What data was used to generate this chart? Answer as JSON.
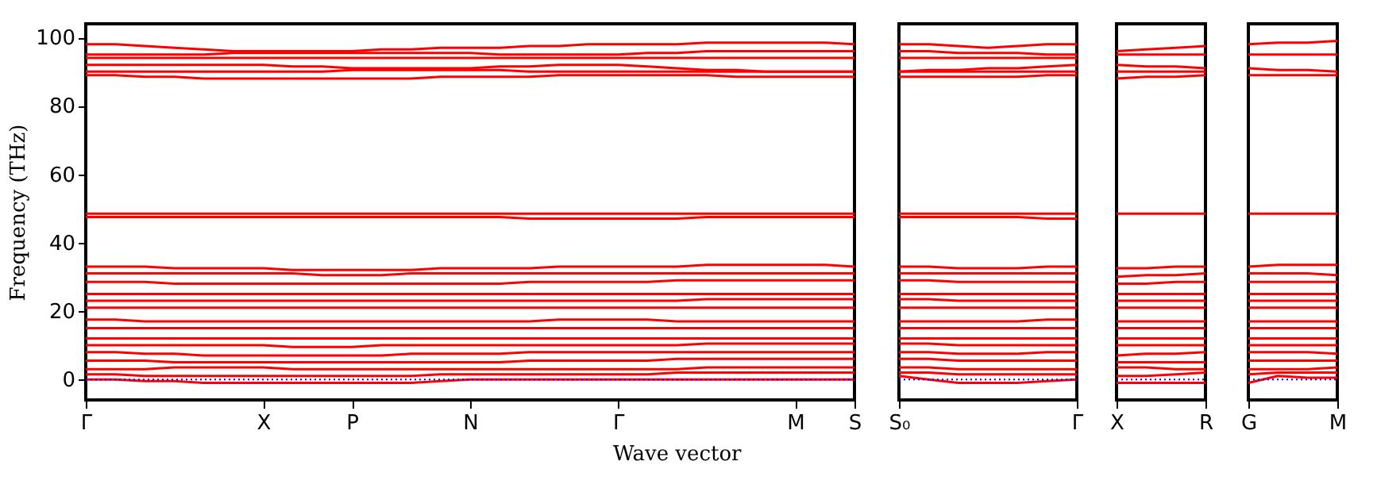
{
  "chart_data": [
    {
      "type": "line",
      "xlabel": "Wave vector",
      "ylabel": "Frequency (THz)",
      "categories": [
        "Γ",
        null,
        null,
        null,
        null,
        null,
        "X",
        null,
        null,
        "P",
        null,
        null,
        null,
        "N",
        null,
        null,
        null,
        null,
        "Γ",
        null,
        null,
        null,
        null,
        null,
        "M",
        null,
        "S"
      ],
      "ylim": [
        -6,
        104
      ],
      "yticks": [
        0,
        20,
        40,
        60,
        80,
        100
      ],
      "grid": false,
      "series": [
        {
          "color": "#ff0000",
          "values": [
            98,
            98,
            97.5,
            97,
            96.5,
            96,
            96,
            96,
            96,
            96,
            96.5,
            96.5,
            97,
            97,
            97,
            97.5,
            97.5,
            98,
            98,
            98,
            98,
            98.5,
            98.5,
            98.5,
            98.5,
            98.5,
            98
          ]
        },
        {
          "color": "#ff0000",
          "values": [
            95,
            95,
            95,
            95,
            95,
            95.5,
            95.5,
            95.5,
            95.5,
            95.5,
            95.5,
            95.5,
            95.5,
            95.5,
            95,
            95,
            95,
            95,
            95,
            95.5,
            95.5,
            96,
            96,
            96,
            96,
            96,
            96
          ]
        },
        {
          "color": "#ff0000",
          "values": [
            94,
            94,
            94,
            94,
            94,
            94,
            94,
            94,
            94,
            94,
            94,
            94,
            94,
            94,
            94,
            94,
            94,
            94,
            94,
            94,
            94,
            94,
            94,
            94,
            94,
            94,
            94
          ]
        },
        {
          "color": "#ff0000",
          "values": [
            92,
            92,
            92,
            92,
            92,
            92,
            92,
            91.5,
            91.5,
            91,
            91,
            91,
            91,
            91,
            91.5,
            91.5,
            92,
            92,
            92,
            91.5,
            91,
            90.5,
            90.5,
            90,
            90,
            90,
            90
          ]
        },
        {
          "color": "#ff0000",
          "values": [
            90,
            90,
            90,
            90,
            90,
            90,
            90,
            90,
            90,
            90.5,
            90.5,
            90.5,
            90.5,
            90.5,
            90.5,
            90,
            90,
            90,
            90,
            90,
            90,
            90,
            90,
            90,
            90,
            90,
            90
          ]
        },
        {
          "color": "#ff0000",
          "values": [
            89,
            89,
            88.5,
            88.5,
            88,
            88,
            88,
            88,
            88,
            88,
            88,
            88,
            88.5,
            88.5,
            88.5,
            88.5,
            89,
            89,
            89,
            89,
            89,
            89,
            88.5,
            88.5,
            88.5,
            88.5,
            88.5
          ]
        },
        {
          "color": "#ff0000",
          "values": [
            48.5,
            48.5,
            48.5,
            48.5,
            48.5,
            48.5,
            48.5,
            48.5,
            48.5,
            48.5,
            48.5,
            48.5,
            48.5,
            48.5,
            48.5,
            48.5,
            48.5,
            48.5,
            48.5,
            48.5,
            48.5,
            48.5,
            48.5,
            48.5,
            48.5,
            48.5,
            48.5
          ]
        },
        {
          "color": "#ff0000",
          "values": [
            47.5,
            47.5,
            47.5,
            47.5,
            47.5,
            47.5,
            47.5,
            47.5,
            47.5,
            47.5,
            47.5,
            47.5,
            47.5,
            47.5,
            47.5,
            47,
            47,
            47,
            47,
            47,
            47,
            47.5,
            47.5,
            47.5,
            47.5,
            47.5,
            47.5
          ]
        },
        {
          "color": "#ff0000",
          "values": [
            33,
            33,
            33,
            32.5,
            32.5,
            32.5,
            32.5,
            32,
            32,
            32,
            32,
            32,
            32.5,
            32.5,
            32.5,
            32.5,
            33,
            33,
            33,
            33,
            33,
            33.5,
            33.5,
            33.5,
            33.5,
            33.5,
            33
          ]
        },
        {
          "color": "#ff0000",
          "values": [
            31,
            31,
            31,
            31,
            31,
            31,
            31,
            31,
            30.5,
            30.5,
            30.5,
            31,
            31,
            31,
            31,
            31,
            31,
            31,
            31,
            31,
            31,
            31,
            31,
            31,
            31,
            31,
            31
          ]
        },
        {
          "color": "#ff0000",
          "values": [
            28.5,
            28.5,
            28.5,
            28,
            28,
            28,
            28,
            28,
            28,
            28,
            28,
            28,
            28,
            28,
            28,
            28.5,
            28.5,
            28.5,
            28.5,
            28.5,
            29,
            29,
            29,
            29,
            29,
            29,
            29
          ]
        },
        {
          "color": "#ff0000",
          "values": [
            25,
            25,
            25,
            25,
            25,
            25,
            25,
            25,
            25,
            25,
            25,
            25,
            25,
            25,
            25,
            25,
            25,
            25,
            25,
            25,
            25,
            25,
            25,
            25,
            25,
            25,
            25
          ]
        },
        {
          "color": "#ff0000",
          "values": [
            23,
            23,
            23,
            23,
            23,
            23,
            23,
            23,
            23,
            23,
            23,
            23,
            23,
            23,
            23,
            23,
            23,
            23,
            23,
            23,
            23,
            23.5,
            23.5,
            23.5,
            23.5,
            23.5,
            23.5
          ]
        },
        {
          "color": "#ff0000",
          "values": [
            21,
            21,
            21,
            21,
            21,
            21,
            21,
            21,
            21,
            21,
            21,
            21,
            21,
            21,
            21,
            21,
            21,
            21,
            21,
            21,
            21,
            21,
            21,
            21,
            21,
            21,
            21
          ]
        },
        {
          "color": "#ff0000",
          "values": [
            17.5,
            17.5,
            17,
            17,
            17,
            17,
            17,
            17,
            17,
            17,
            17,
            17,
            17,
            17,
            17,
            17,
            17.5,
            17.5,
            17.5,
            17.5,
            17,
            17,
            17,
            17,
            17,
            17,
            17
          ]
        },
        {
          "color": "#ff0000",
          "values": [
            15,
            15,
            15,
            15,
            15,
            15,
            15,
            15,
            15,
            15,
            15,
            15,
            15,
            15,
            15,
            15,
            15,
            15,
            15,
            15,
            15,
            15,
            15,
            15,
            15,
            15,
            15
          ]
        },
        {
          "color": "#ff0000",
          "values": [
            12,
            12,
            12,
            12,
            12,
            12,
            12,
            12,
            12,
            12,
            12,
            12,
            12,
            12,
            12,
            12,
            12,
            12,
            12,
            12,
            12,
            12,
            12,
            12,
            12,
            12,
            12
          ]
        },
        {
          "color": "#ff0000",
          "values": [
            10,
            10,
            10,
            10,
            10,
            10,
            10,
            9.5,
            9.5,
            9.5,
            10,
            10,
            10,
            10,
            10,
            10,
            10,
            10,
            10,
            10,
            10,
            10.5,
            10.5,
            10.5,
            10.5,
            10.5,
            10.5
          ]
        },
        {
          "color": "#ff0000",
          "values": [
            8,
            8,
            7.5,
            7.5,
            7,
            7,
            7,
            7,
            7,
            7,
            7,
            7.5,
            7.5,
            7.5,
            7.5,
            8,
            8,
            8,
            8,
            8,
            8,
            8,
            8,
            8,
            8,
            8,
            8
          ]
        },
        {
          "color": "#ff0000",
          "values": [
            5.5,
            5.5,
            5.5,
            5,
            5,
            5,
            5,
            5,
            5,
            5,
            5,
            5,
            5,
            5,
            5,
            5.5,
            5.5,
            5.5,
            5.5,
            5.5,
            6,
            6,
            6,
            6,
            6,
            6,
            6
          ]
        },
        {
          "color": "#ff0000",
          "values": [
            3,
            3,
            3,
            3.5,
            3.5,
            3.5,
            3.5,
            3,
            3,
            3,
            3,
            3,
            3,
            3,
            3,
            3,
            3,
            3,
            3,
            3,
            3,
            3.5,
            3.5,
            3.5,
            3.5,
            3.5,
            3.5
          ]
        },
        {
          "color": "#ff0000",
          "values": [
            1.5,
            1.5,
            1,
            1,
            1,
            1,
            1,
            1,
            1,
            1,
            1,
            1,
            1.5,
            1.5,
            1.5,
            1.5,
            1.5,
            1.5,
            1.5,
            1.5,
            2,
            2,
            2,
            2,
            2,
            2,
            2
          ]
        },
        {
          "color": "#ff0000",
          "values": [
            0,
            0,
            -0.5,
            -0.5,
            -1,
            -1,
            -1,
            -1,
            -1,
            -1,
            -1,
            -1,
            -0.5,
            0,
            0,
            0,
            0,
            0,
            0,
            0,
            0,
            0,
            0,
            0,
            0,
            0,
            0
          ]
        },
        {
          "color": "#0000ff",
          "line_style": "dotted",
          "values": [
            0,
            0,
            0,
            0,
            0,
            0,
            0,
            0,
            0,
            0,
            0,
            0,
            0,
            0,
            0,
            0,
            0,
            0,
            0,
            0,
            0,
            0,
            0,
            0,
            0,
            0,
            0
          ]
        }
      ]
    },
    {
      "type": "line",
      "tick_labels": "x",
      "categories": [
        "S₀",
        null,
        null,
        null,
        null,
        null,
        "Γ"
      ],
      "ylim": [
        -6,
        104
      ],
      "yticks": [
        0,
        20,
        40,
        60,
        80,
        100
      ],
      "grid": false,
      "series": [
        {
          "color": "#ff0000",
          "values": [
            98,
            98,
            97.5,
            97,
            97.5,
            98,
            98
          ]
        },
        {
          "color": "#ff0000",
          "values": [
            96,
            96,
            95.5,
            95.5,
            95.5,
            95,
            95
          ]
        },
        {
          "color": "#ff0000",
          "values": [
            94,
            94,
            94,
            94,
            94,
            94,
            94
          ]
        },
        {
          "color": "#ff0000",
          "values": [
            90,
            90.5,
            90.5,
            91,
            91,
            91.5,
            92
          ]
        },
        {
          "color": "#ff0000",
          "values": [
            90,
            90,
            90,
            90,
            90,
            90,
            90
          ]
        },
        {
          "color": "#ff0000",
          "values": [
            88.5,
            88.5,
            88.5,
            88.5,
            88.5,
            89,
            89
          ]
        },
        {
          "color": "#ff0000",
          "values": [
            48.5,
            48.5,
            48.5,
            48.5,
            48.5,
            48.5,
            48.5
          ]
        },
        {
          "color": "#ff0000",
          "values": [
            47.5,
            47.5,
            47.5,
            47.5,
            47.5,
            47,
            47
          ]
        },
        {
          "color": "#ff0000",
          "values": [
            33,
            33,
            32.5,
            32.5,
            32.5,
            33,
            33
          ]
        },
        {
          "color": "#ff0000",
          "values": [
            31,
            31,
            31,
            31,
            31,
            31,
            31
          ]
        },
        {
          "color": "#ff0000",
          "values": [
            29,
            29,
            28.5,
            28.5,
            28.5,
            28.5,
            28.5
          ]
        },
        {
          "color": "#ff0000",
          "values": [
            25,
            25,
            25,
            25,
            25,
            25,
            25
          ]
        },
        {
          "color": "#ff0000",
          "values": [
            23.5,
            23.5,
            23,
            23,
            23,
            23,
            23
          ]
        },
        {
          "color": "#ff0000",
          "values": [
            21,
            21,
            21,
            21,
            21,
            21,
            21
          ]
        },
        {
          "color": "#ff0000",
          "values": [
            17,
            17,
            17,
            17,
            17,
            17.5,
            17.5
          ]
        },
        {
          "color": "#ff0000",
          "values": [
            15,
            15,
            15,
            15,
            15,
            15,
            15
          ]
        },
        {
          "color": "#ff0000",
          "values": [
            12,
            12,
            12,
            12,
            12,
            12,
            12
          ]
        },
        {
          "color": "#ff0000",
          "values": [
            10.5,
            10.5,
            10,
            10,
            10,
            10,
            10
          ]
        },
        {
          "color": "#ff0000",
          "values": [
            8,
            8,
            7.5,
            7.5,
            7.5,
            8,
            8
          ]
        },
        {
          "color": "#ff0000",
          "values": [
            6,
            6,
            5.5,
            5.5,
            5.5,
            5.5,
            5.5
          ]
        },
        {
          "color": "#ff0000",
          "values": [
            3.5,
            3.5,
            3,
            3,
            3,
            3,
            3
          ]
        },
        {
          "color": "#ff0000",
          "values": [
            2,
            2,
            1.5,
            1.5,
            1.5,
            1.5,
            1.5
          ]
        },
        {
          "color": "#ff0000",
          "values": [
            1,
            0,
            -1,
            -1,
            -1,
            -0.5,
            0
          ]
        },
        {
          "color": "#0000ff",
          "line_style": "dotted",
          "values": [
            0,
            0,
            0,
            0,
            0,
            0,
            0
          ]
        }
      ]
    },
    {
      "type": "line",
      "tick_labels": "x",
      "categories": [
        "X",
        null,
        null,
        "R"
      ],
      "ylim": [
        -6,
        104
      ],
      "yticks": [
        0,
        20,
        40,
        60,
        80,
        100
      ],
      "grid": false,
      "series": [
        {
          "color": "#ff0000",
          "values": [
            96,
            96.5,
            97,
            97.5
          ]
        },
        {
          "color": "#ff0000",
          "values": [
            95,
            95,
            95,
            95
          ]
        },
        {
          "color": "#ff0000",
          "values": [
            92,
            91.5,
            91.5,
            91
          ]
        },
        {
          "color": "#ff0000",
          "values": [
            90,
            90,
            90,
            90
          ]
        },
        {
          "color": "#ff0000",
          "values": [
            88,
            88.5,
            88.5,
            89
          ]
        },
        {
          "color": "#ff0000",
          "values": [
            48.5,
            48.5,
            48.5,
            48.5
          ]
        },
        {
          "color": "#ff0000",
          "values": [
            32.5,
            32.5,
            33,
            33
          ]
        },
        {
          "color": "#ff0000",
          "values": [
            30,
            30.5,
            30.5,
            31
          ]
        },
        {
          "color": "#ff0000",
          "values": [
            28,
            28,
            28.5,
            28.5
          ]
        },
        {
          "color": "#ff0000",
          "values": [
            25,
            25,
            25,
            25
          ]
        },
        {
          "color": "#ff0000",
          "values": [
            23,
            23,
            23,
            23
          ]
        },
        {
          "color": "#ff0000",
          "values": [
            21,
            21,
            21,
            21
          ]
        },
        {
          "color": "#ff0000",
          "values": [
            17,
            17,
            17,
            17
          ]
        },
        {
          "color": "#ff0000",
          "values": [
            15,
            15,
            15,
            15
          ]
        },
        {
          "color": "#ff0000",
          "values": [
            12,
            12,
            12,
            12
          ]
        },
        {
          "color": "#ff0000",
          "values": [
            10,
            10,
            10,
            10
          ]
        },
        {
          "color": "#ff0000",
          "values": [
            7,
            7.5,
            7.5,
            8
          ]
        },
        {
          "color": "#ff0000",
          "values": [
            5,
            5,
            5,
            5
          ]
        },
        {
          "color": "#ff0000",
          "values": [
            3.5,
            3.5,
            3,
            3
          ]
        },
        {
          "color": "#ff0000",
          "values": [
            1,
            1,
            1.5,
            2
          ]
        },
        {
          "color": "#ff0000",
          "values": [
            -1,
            -1,
            -1,
            -1
          ]
        },
        {
          "color": "#0000ff",
          "line_style": "dotted",
          "values": [
            0,
            0,
            0,
            0
          ]
        }
      ]
    },
    {
      "type": "line",
      "tick_labels": "x",
      "categories": [
        "G",
        null,
        null,
        "M"
      ],
      "ylim": [
        -6,
        104
      ],
      "yticks": [
        0,
        20,
        40,
        60,
        80,
        100
      ],
      "grid": false,
      "series": [
        {
          "color": "#ff0000",
          "values": [
            98,
            98.5,
            98.5,
            99
          ]
        },
        {
          "color": "#ff0000",
          "values": [
            95,
            95,
            95,
            95
          ]
        },
        {
          "color": "#ff0000",
          "values": [
            91,
            90.5,
            90.5,
            90
          ]
        },
        {
          "color": "#ff0000",
          "values": [
            89,
            89,
            89,
            89
          ]
        },
        {
          "color": "#ff0000",
          "values": [
            48.5,
            48.5,
            48.5,
            48.5
          ]
        },
        {
          "color": "#ff0000",
          "values": [
            33,
            33.5,
            33.5,
            33.5
          ]
        },
        {
          "color": "#ff0000",
          "values": [
            31,
            31,
            31,
            30.5
          ]
        },
        {
          "color": "#ff0000",
          "values": [
            28.5,
            28.5,
            28.5,
            28.5
          ]
        },
        {
          "color": "#ff0000",
          "values": [
            25,
            25,
            25,
            25
          ]
        },
        {
          "color": "#ff0000",
          "values": [
            23,
            23,
            23,
            23
          ]
        },
        {
          "color": "#ff0000",
          "values": [
            21,
            21,
            21,
            21
          ]
        },
        {
          "color": "#ff0000",
          "values": [
            17,
            17,
            17,
            17
          ]
        },
        {
          "color": "#ff0000",
          "values": [
            15,
            15,
            15,
            15
          ]
        },
        {
          "color": "#ff0000",
          "values": [
            12,
            12,
            12,
            12
          ]
        },
        {
          "color": "#ff0000",
          "values": [
            10,
            10,
            10,
            10
          ]
        },
        {
          "color": "#ff0000",
          "values": [
            8,
            8,
            8,
            7.5
          ]
        },
        {
          "color": "#ff0000",
          "values": [
            5.5,
            5.5,
            5.5,
            5.5
          ]
        },
        {
          "color": "#ff0000",
          "values": [
            3,
            3,
            3,
            3.5
          ]
        },
        {
          "color": "#ff0000",
          "values": [
            1.5,
            2,
            2,
            2
          ]
        },
        {
          "color": "#ff0000",
          "values": [
            -1,
            1,
            0.5,
            0.5
          ]
        },
        {
          "color": "#0000ff",
          "line_style": "dotted",
          "values": [
            0,
            0,
            0,
            0
          ]
        }
      ]
    }
  ]
}
